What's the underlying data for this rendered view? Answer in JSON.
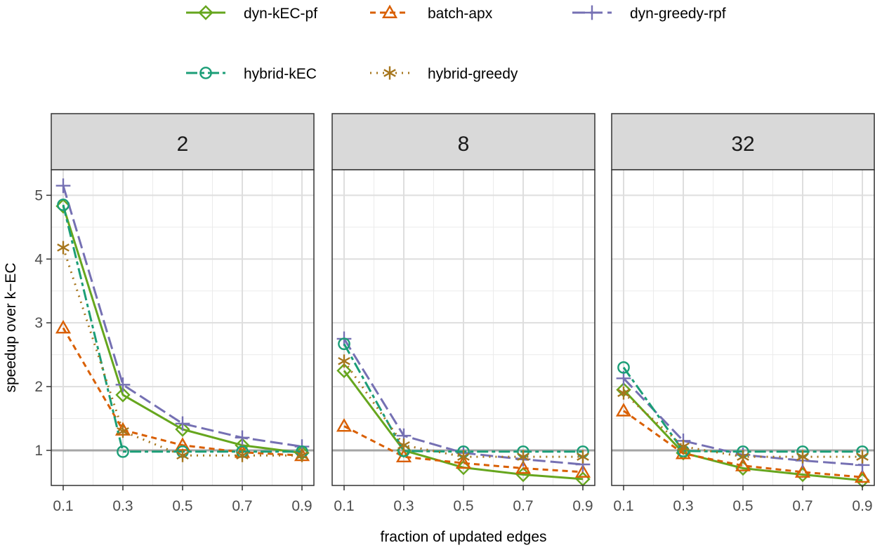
{
  "chart_data": {
    "type": "line",
    "facet_titles": [
      "2",
      "8",
      "32"
    ],
    "xlabel": "fraction of updated edges",
    "ylabel": "speedup over k−EC",
    "x": [
      0.1,
      0.3,
      0.5,
      0.7,
      0.9
    ],
    "x_tick_labels": [
      "0.1",
      "0.3",
      "0.5",
      "0.7",
      "0.9"
    ],
    "xlim": [
      0.06,
      0.94
    ],
    "ylim": [
      0.45,
      5.4
    ],
    "y_ticks": [
      1,
      2,
      3,
      4,
      5
    ],
    "y_tick_labels": [
      "1",
      "2",
      "3",
      "4",
      "5"
    ],
    "reference_line": 1,
    "grid": true,
    "legend_position": "top",
    "series": [
      {
        "name": "dyn-kEC-pf",
        "color": "#66A61E",
        "marker": "diamond",
        "dash": "solid",
        "values": [
          [
            4.83,
            1.87,
            1.33,
            1.08,
            0.96
          ],
          [
            2.25,
            1.0,
            0.73,
            0.62,
            0.55
          ],
          [
            1.95,
            0.96,
            0.72,
            0.62,
            0.53
          ]
        ]
      },
      {
        "name": "batch-apx",
        "color": "#D95F02",
        "marker": "triangle",
        "dash": "dashed",
        "values": [
          [
            2.92,
            1.32,
            1.08,
            0.97,
            0.92
          ],
          [
            1.38,
            0.9,
            0.8,
            0.72,
            0.66
          ],
          [
            1.62,
            0.95,
            0.76,
            0.66,
            0.58
          ]
        ]
      },
      {
        "name": "dyn-greedy-rpf",
        "color": "#7570B3",
        "marker": "plus",
        "dash": "longdash",
        "values": [
          [
            5.15,
            2.03,
            1.42,
            1.2,
            1.06
          ],
          [
            2.75,
            1.23,
            0.96,
            0.86,
            0.78
          ],
          [
            2.13,
            1.15,
            0.93,
            0.84,
            0.77
          ]
        ]
      },
      {
        "name": "hybrid-kEC",
        "color": "#1B9E77",
        "marker": "circle",
        "dash": "twodash",
        "values": [
          [
            4.85,
            0.98,
            0.98,
            0.98,
            0.98
          ],
          [
            2.67,
            0.99,
            0.98,
            0.98,
            0.98
          ],
          [
            2.3,
            0.99,
            0.98,
            0.98,
            0.98
          ]
        ]
      },
      {
        "name": "hybrid-greedy",
        "color": "#A6761D",
        "marker": "asterisk",
        "dash": "dotted",
        "values": [
          [
            4.18,
            1.3,
            0.92,
            0.92,
            0.92
          ],
          [
            2.4,
            1.08,
            0.9,
            0.9,
            0.9
          ],
          [
            1.9,
            1.06,
            0.9,
            0.9,
            0.9
          ]
        ]
      }
    ]
  }
}
